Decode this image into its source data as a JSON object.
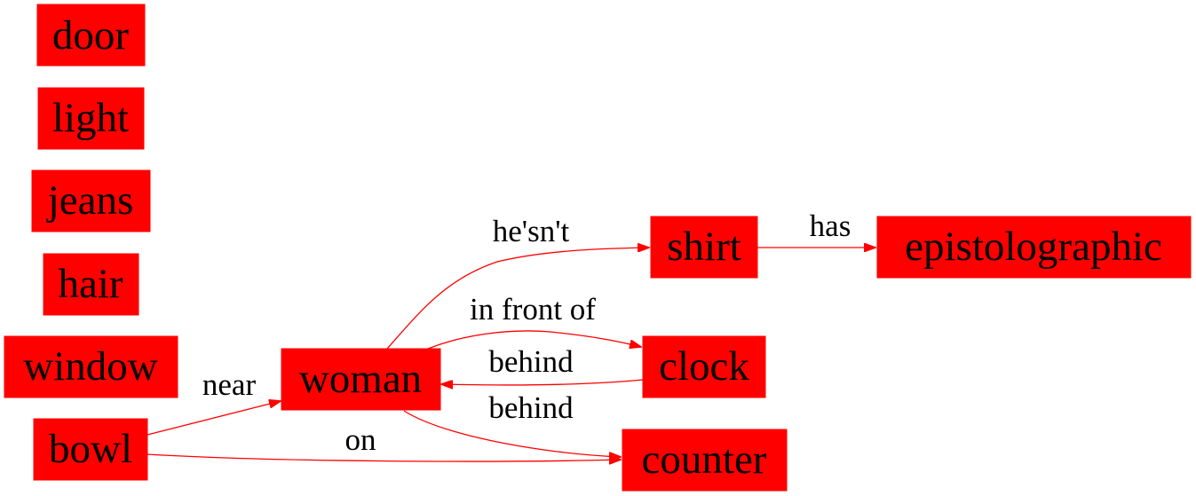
{
  "colors": {
    "node_fill": "#ff0000",
    "edge": "#ff0000",
    "text": "#000000"
  },
  "nodes": {
    "door": "door",
    "light": "light",
    "jeans": "jeans",
    "hair": "hair",
    "window": "window",
    "bowl": "bowl",
    "woman": "woman",
    "shirt": "shirt",
    "epistolographic": "epistolographic",
    "clock": "clock",
    "counter": "counter"
  },
  "edges": [
    {
      "from": "bowl",
      "to": "woman",
      "label": "near"
    },
    {
      "from": "bowl",
      "to": "counter",
      "label": "on"
    },
    {
      "from": "woman",
      "to": "shirt",
      "label": "he'sn't"
    },
    {
      "from": "woman",
      "to": "clock",
      "label": "in front of"
    },
    {
      "from": "clock",
      "to": "woman",
      "label": "behind"
    },
    {
      "from": "woman",
      "to": "counter",
      "label": "behind"
    },
    {
      "from": "shirt",
      "to": "epistolographic",
      "label": "has"
    }
  ]
}
